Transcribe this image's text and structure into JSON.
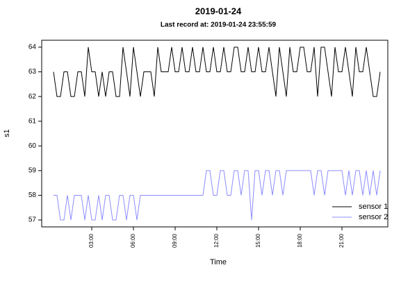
{
  "chart_data": {
    "type": "line",
    "title": "2019-01-24",
    "subtitle": "Last record at: 2019-01-24 23:55:59",
    "x_label": "Time",
    "y_label": "s1",
    "x": [
      0.25,
      0.5,
      0.75,
      1,
      1.25,
      1.5,
      1.75,
      2,
      2.25,
      2.5,
      2.75,
      3,
      3.25,
      3.5,
      3.75,
      4,
      4.25,
      4.5,
      4.75,
      5,
      5.25,
      5.5,
      5.75,
      6,
      6.25,
      6.5,
      6.75,
      7,
      7.25,
      7.5,
      7.75,
      8,
      8.25,
      8.5,
      8.75,
      9,
      9.25,
      9.5,
      9.75,
      10,
      10.25,
      10.5,
      10.75,
      11,
      11.25,
      11.5,
      11.75,
      12,
      12.25,
      12.5,
      12.75,
      13,
      13.25,
      13.5,
      13.75,
      14,
      14.25,
      14.5,
      14.75,
      15,
      15.25,
      15.5,
      15.75,
      16,
      16.25,
      16.5,
      16.75,
      17,
      17.25,
      17.5,
      17.75,
      18,
      18.25,
      18.5,
      18.75,
      19,
      19.25,
      19.5,
      19.75,
      20,
      20.25,
      20.5,
      20.75,
      21,
      21.25,
      21.5,
      21.75,
      22,
      22.25,
      22.5,
      22.75,
      23,
      23.25,
      23.5,
      23.75
    ],
    "series": [
      {
        "name": "sensor 1",
        "color": "#000000",
        "values": [
          63,
          62,
          62,
          63,
          63,
          62,
          62,
          63,
          63,
          62,
          64,
          63,
          63,
          62,
          63,
          62,
          63,
          63,
          62,
          62,
          64,
          63,
          62,
          64,
          63,
          62,
          63,
          63,
          63,
          62,
          64,
          63,
          63,
          63,
          64,
          63,
          63,
          64,
          63,
          63,
          64,
          63,
          63,
          64,
          63,
          63,
          64,
          63,
          63,
          64,
          63,
          63,
          64,
          64,
          63,
          63,
          64,
          63,
          63,
          64,
          63,
          63,
          64,
          63,
          62,
          64,
          63,
          62,
          64,
          63,
          63,
          64,
          64,
          63,
          63,
          64,
          62,
          64,
          64,
          63,
          62,
          64,
          63,
          63,
          64,
          63,
          62,
          64,
          63,
          63,
          64,
          63,
          62,
          62,
          63
        ]
      },
      {
        "name": "sensor 2",
        "color": "#8c8cff",
        "values": [
          58,
          58,
          57,
          57,
          58,
          57,
          58,
          58,
          58,
          57,
          58,
          57,
          57,
          58,
          57,
          58,
          58,
          57,
          57,
          58,
          58,
          57,
          58,
          58,
          57,
          58,
          58,
          58,
          58,
          58,
          58,
          58,
          58,
          58,
          58,
          58,
          58,
          58,
          58,
          58,
          58,
          58,
          58,
          58,
          59,
          59,
          58,
          58,
          59,
          59,
          58,
          58,
          59,
          59,
          58,
          59,
          59,
          57,
          59,
          59,
          58,
          59,
          59,
          58,
          59,
          59,
          58,
          59,
          59,
          59,
          59,
          59,
          59,
          59,
          59,
          58,
          59,
          59,
          58,
          59,
          59,
          59,
          59,
          59,
          58,
          59,
          58,
          59,
          59,
          58,
          59,
          58,
          59,
          58,
          59
        ]
      }
    ],
    "xlim": [
      -0.6,
      24.3
    ],
    "ylim": [
      56.72,
      64.28
    ],
    "xticks": [
      {
        "value": 3,
        "label": "03:00"
      },
      {
        "value": 6,
        "label": "06:00"
      },
      {
        "value": 9,
        "label": "09:00"
      },
      {
        "value": 12,
        "label": "12:00"
      },
      {
        "value": 15,
        "label": "15:00"
      },
      {
        "value": 18,
        "label": "18:00"
      },
      {
        "value": 21,
        "label": "21:00"
      }
    ],
    "yticks": [
      57,
      58,
      59,
      60,
      61,
      62,
      63,
      64
    ],
    "legend": "bottom-right"
  }
}
